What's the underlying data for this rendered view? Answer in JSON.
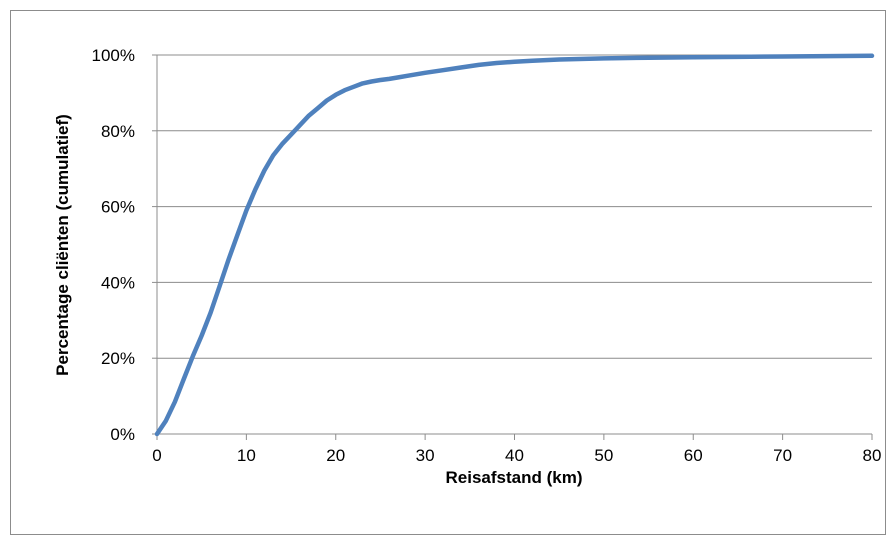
{
  "header": {
    "title_fragment": "",
    "title_color": "#1f9bd7"
  },
  "chart_data": {
    "type": "line",
    "title": "",
    "xlabel": "Reisafstand (km)",
    "ylabel": "Percentage cliënten (cumulatief)",
    "xlim": [
      0,
      80
    ],
    "ylim": [
      0,
      100
    ],
    "x_ticks": [
      0,
      10,
      20,
      30,
      40,
      50,
      60,
      70,
      80
    ],
    "x_tick_labels": [
      "0",
      "10",
      "20",
      "30",
      "40",
      "50",
      "60",
      "70",
      "80"
    ],
    "y_ticks": [
      0,
      20,
      40,
      60,
      80,
      100
    ],
    "y_tick_labels": [
      "0%",
      "20%",
      "40%",
      "60%",
      "80%",
      "100%"
    ],
    "grid": "horizontal",
    "legend": "none",
    "series_color": "#4f81bd",
    "gridline_color": "#8c8c8c",
    "series": [
      {
        "x": [
          0,
          1,
          2,
          3,
          4,
          5,
          6,
          7,
          8,
          9,
          10,
          11,
          12,
          13,
          14,
          15,
          16,
          17,
          18,
          19,
          20,
          21,
          22,
          23,
          24,
          25,
          26,
          27,
          28,
          29,
          30,
          32,
          34,
          36,
          38,
          40,
          42,
          45,
          50,
          55,
          60,
          65,
          70,
          75,
          80
        ],
        "y": [
          0,
          3.5,
          8.5,
          14.5,
          20.5,
          26,
          32,
          39,
          46,
          52.5,
          59,
          64.5,
          69.5,
          73.5,
          76.5,
          79,
          81.5,
          84,
          86,
          88,
          89.5,
          90.7,
          91.6,
          92.5,
          93,
          93.4,
          93.7,
          94.1,
          94.5,
          94.9,
          95.3,
          96,
          96.7,
          97.4,
          97.9,
          98.2,
          98.5,
          98.8,
          99.1,
          99.3,
          99.4,
          99.5,
          99.6,
          99.7,
          99.8
        ]
      }
    ]
  }
}
